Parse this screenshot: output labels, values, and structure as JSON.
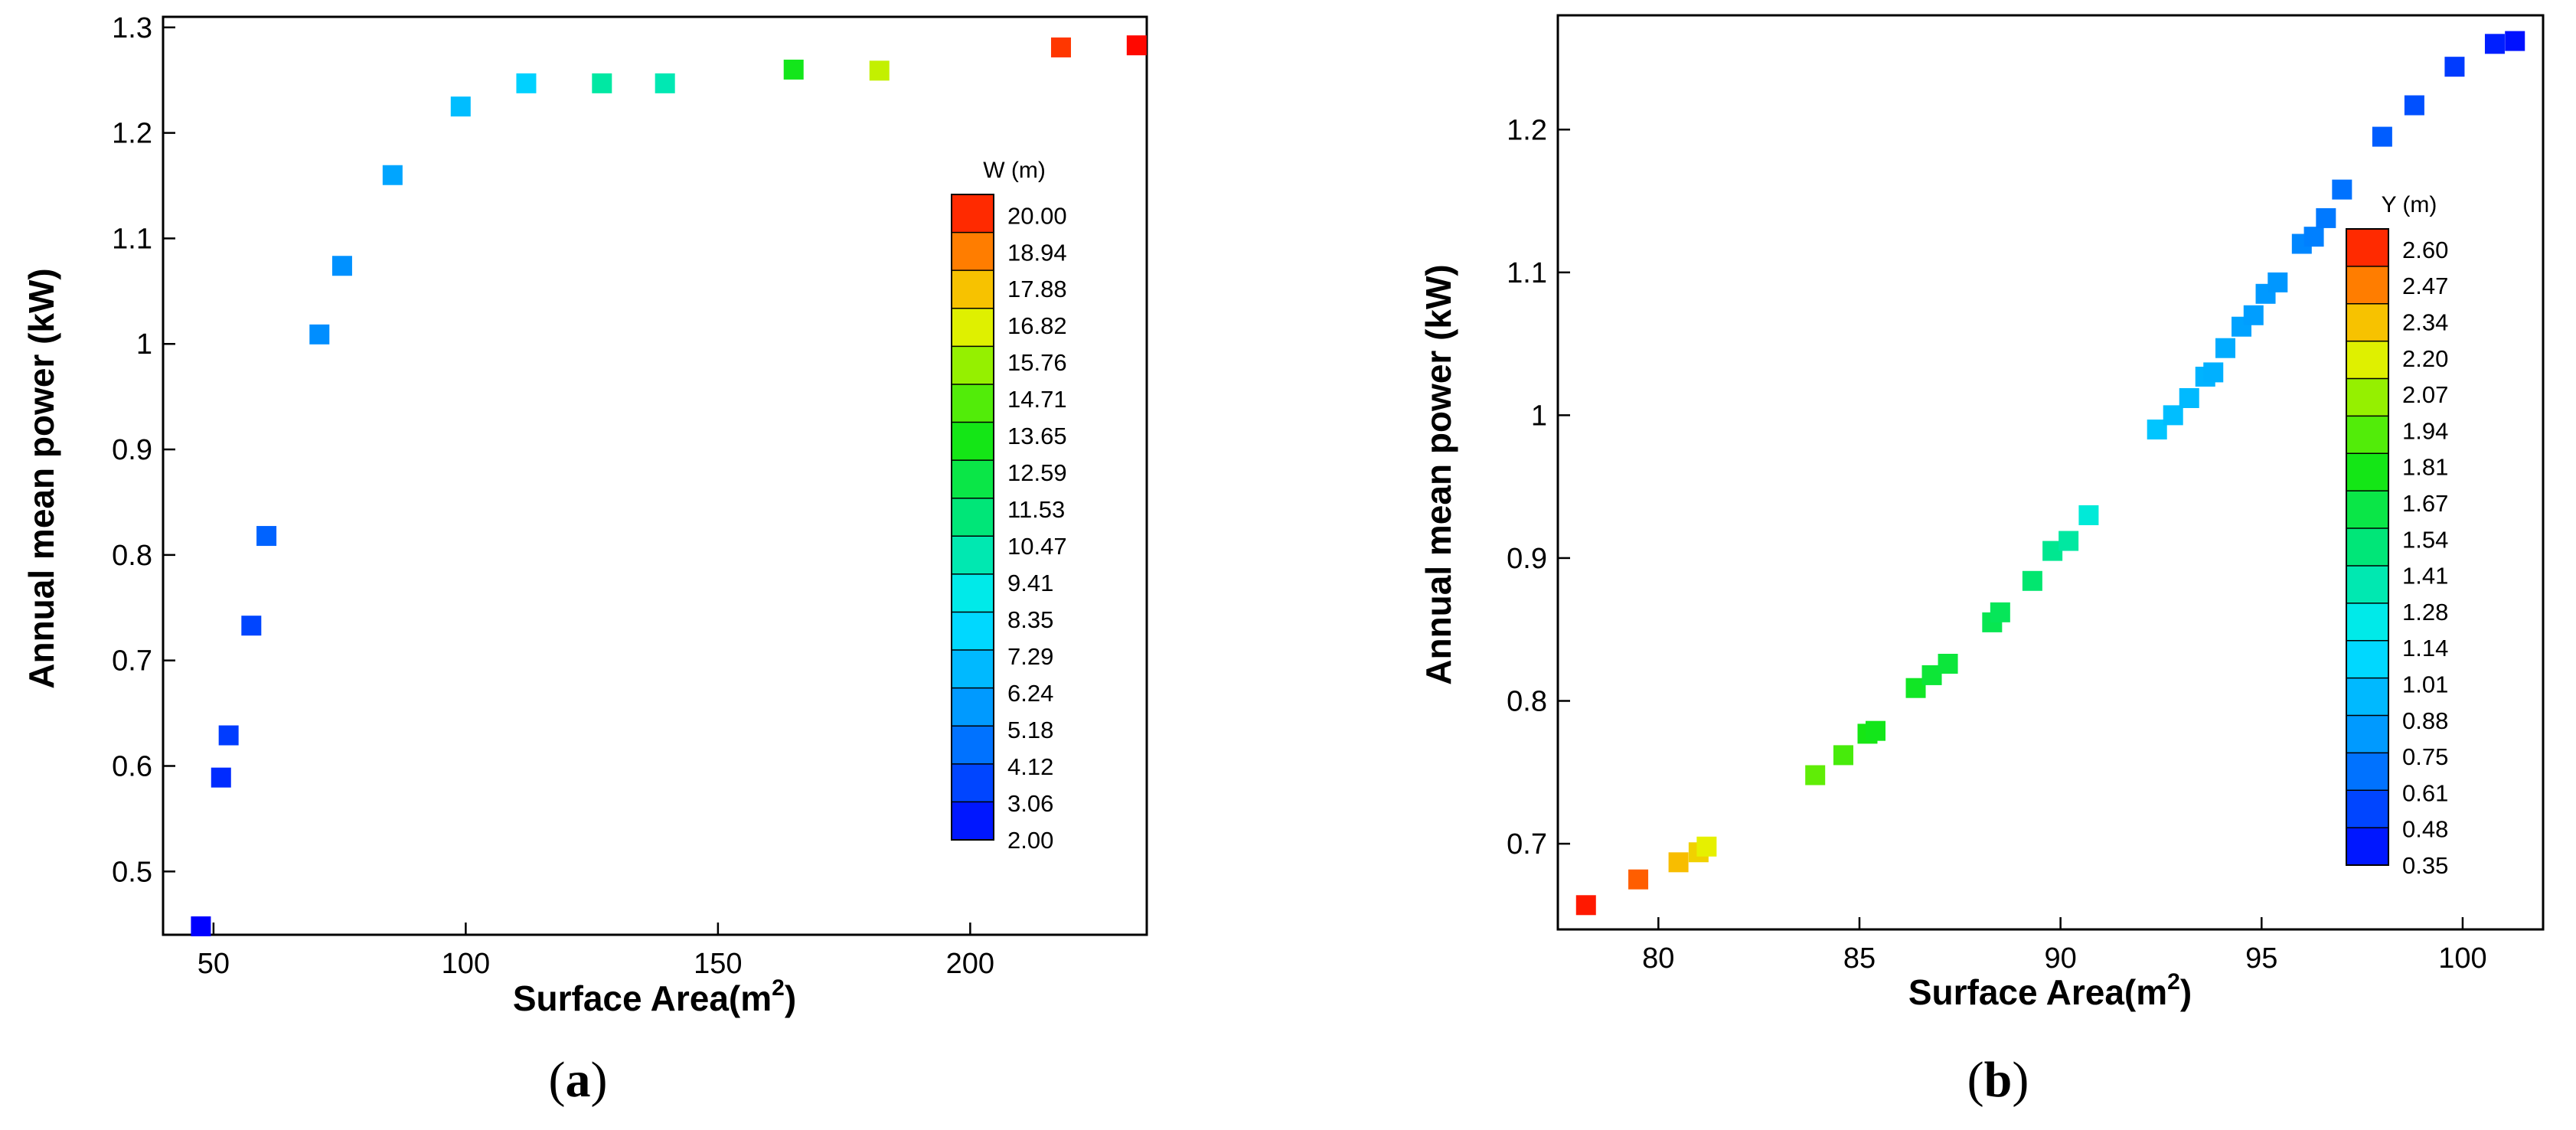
{
  "figure": {
    "panels": [
      {
        "letter": "a",
        "open": "(",
        "close": ")"
      },
      {
        "letter": "b",
        "open": "(",
        "close": ")"
      }
    ]
  },
  "chart_data": [
    {
      "type": "scatter",
      "marker": "square",
      "title": "",
      "xlabel": "Surface Area(m",
      "xlabel_superscript": "2",
      "xlabel_suffix": ")",
      "ylabel": "Annual mean power (kW)",
      "xlim": [
        40,
        235
      ],
      "ylim": [
        0.44,
        1.31
      ],
      "xticks": [
        50,
        100,
        150,
        200
      ],
      "xtick_labels": [
        "50",
        "100",
        "150",
        "200"
      ],
      "yticks": [
        0.5,
        0.6,
        0.7,
        0.8,
        0.9,
        1.0,
        1.1,
        1.2,
        1.3
      ],
      "ytick_labels": [
        "0.5",
        "0.6",
        "0.7",
        "0.8",
        "0.9",
        "1",
        "1.1",
        "1.2",
        "1.3"
      ],
      "colorbar": {
        "title": "W (m)",
        "labels": [
          "20.00",
          "18.94",
          "17.88",
          "16.82",
          "15.76",
          "14.71",
          "13.65",
          "12.59",
          "11.53",
          "10.47",
          "9.41",
          "8.35",
          "7.29",
          "6.24",
          "5.18",
          "4.12",
          "3.06",
          "2.00"
        ],
        "min": 2.0,
        "max": 20.0,
        "levels": 17,
        "position": "right"
      },
      "points": [
        {
          "x": 47.5,
          "y": 0.448,
          "c": 2.0
        },
        {
          "x": 51.5,
          "y": 0.589,
          "c": 3.0
        },
        {
          "x": 53.0,
          "y": 0.629,
          "c": 3.4
        },
        {
          "x": 57.5,
          "y": 0.733,
          "c": 3.6
        },
        {
          "x": 60.5,
          "y": 0.818,
          "c": 4.3
        },
        {
          "x": 71.0,
          "y": 1.009,
          "c": 5.3
        },
        {
          "x": 75.5,
          "y": 1.074,
          "c": 5.4
        },
        {
          "x": 85.5,
          "y": 1.16,
          "c": 6.1
        },
        {
          "x": 99.0,
          "y": 1.225,
          "c": 6.9
        },
        {
          "x": 112.0,
          "y": 1.247,
          "c": 7.6
        },
        {
          "x": 127.0,
          "y": 1.247,
          "c": 10.2
        },
        {
          "x": 139.5,
          "y": 1.247,
          "c": 9.9
        },
        {
          "x": 165.0,
          "y": 1.26,
          "c": 13.0
        },
        {
          "x": 182.0,
          "y": 1.259,
          "c": 15.9
        },
        {
          "x": 218.0,
          "y": 1.281,
          "c": 19.3
        },
        {
          "x": 233.0,
          "y": 1.283,
          "c": 19.9
        }
      ]
    },
    {
      "type": "scatter",
      "marker": "square",
      "title": "",
      "xlabel": "Surface Area(m",
      "xlabel_superscript": "2",
      "xlabel_suffix": ")",
      "ylabel": "Annual mean power (kW)",
      "xlim": [
        77.5,
        102.0
      ],
      "ylim": [
        0.64,
        1.28
      ],
      "xticks": [
        80,
        85,
        90,
        95,
        100
      ],
      "xtick_labels": [
        "80",
        "85",
        "90",
        "95",
        "100"
      ],
      "yticks": [
        0.7,
        0.8,
        0.9,
        1.0,
        1.1,
        1.2
      ],
      "ytick_labels": [
        "0.7",
        "0.8",
        "0.9",
        "1",
        "1.1",
        "1.2"
      ],
      "colorbar": {
        "title": "Y (m)",
        "labels": [
          "2.60",
          "2.47",
          "2.34",
          "2.20",
          "2.07",
          "1.94",
          "1.81",
          "1.67",
          "1.54",
          "1.41",
          "1.28",
          "1.14",
          "1.01",
          "0.88",
          "0.75",
          "0.61",
          "0.48",
          "0.35"
        ],
        "min": 0.35,
        "max": 2.6,
        "levels": 17,
        "position": "right"
      },
      "points": [
        {
          "x": 78.2,
          "y": 0.657,
          "c": 2.56
        },
        {
          "x": 79.5,
          "y": 0.675,
          "c": 2.45
        },
        {
          "x": 80.5,
          "y": 0.687,
          "c": 2.28
        },
        {
          "x": 81.0,
          "y": 0.694,
          "c": 2.23
        },
        {
          "x": 81.2,
          "y": 0.698,
          "c": 2.15
        },
        {
          "x": 83.9,
          "y": 0.748,
          "c": 1.9
        },
        {
          "x": 84.6,
          "y": 0.762,
          "c": 1.85
        },
        {
          "x": 85.2,
          "y": 0.777,
          "c": 1.75
        },
        {
          "x": 85.4,
          "y": 0.779,
          "c": 1.73
        },
        {
          "x": 86.4,
          "y": 0.809,
          "c": 1.7
        },
        {
          "x": 86.8,
          "y": 0.818,
          "c": 1.65
        },
        {
          "x": 87.2,
          "y": 0.826,
          "c": 1.64
        },
        {
          "x": 88.3,
          "y": 0.855,
          "c": 1.58
        },
        {
          "x": 88.5,
          "y": 0.862,
          "c": 1.56
        },
        {
          "x": 89.3,
          "y": 0.884,
          "c": 1.5
        },
        {
          "x": 89.8,
          "y": 0.905,
          "c": 1.42
        },
        {
          "x": 90.2,
          "y": 0.912,
          "c": 1.38
        },
        {
          "x": 90.7,
          "y": 0.93,
          "c": 1.25
        },
        {
          "x": 92.4,
          "y": 0.99,
          "c": 1.0
        },
        {
          "x": 92.8,
          "y": 1.0,
          "c": 0.97
        },
        {
          "x": 93.2,
          "y": 1.012,
          "c": 0.95
        },
        {
          "x": 93.6,
          "y": 1.027,
          "c": 0.92
        },
        {
          "x": 93.8,
          "y": 1.03,
          "c": 0.91
        },
        {
          "x": 94.1,
          "y": 1.047,
          "c": 0.89
        },
        {
          "x": 94.5,
          "y": 1.062,
          "c": 0.85
        },
        {
          "x": 94.8,
          "y": 1.07,
          "c": 0.83
        },
        {
          "x": 95.1,
          "y": 1.085,
          "c": 0.81
        },
        {
          "x": 95.4,
          "y": 1.093,
          "c": 0.8
        },
        {
          "x": 96.0,
          "y": 1.12,
          "c": 0.74
        },
        {
          "x": 96.3,
          "y": 1.125,
          "c": 0.72
        },
        {
          "x": 96.6,
          "y": 1.138,
          "c": 0.7
        },
        {
          "x": 97.0,
          "y": 1.158,
          "c": 0.68
        },
        {
          "x": 98.0,
          "y": 1.195,
          "c": 0.62
        },
        {
          "x": 98.8,
          "y": 1.217,
          "c": 0.58
        },
        {
          "x": 99.8,
          "y": 1.244,
          "c": 0.52
        },
        {
          "x": 100.8,
          "y": 1.26,
          "c": 0.44
        },
        {
          "x": 101.3,
          "y": 1.262,
          "c": 0.4
        }
      ]
    }
  ]
}
